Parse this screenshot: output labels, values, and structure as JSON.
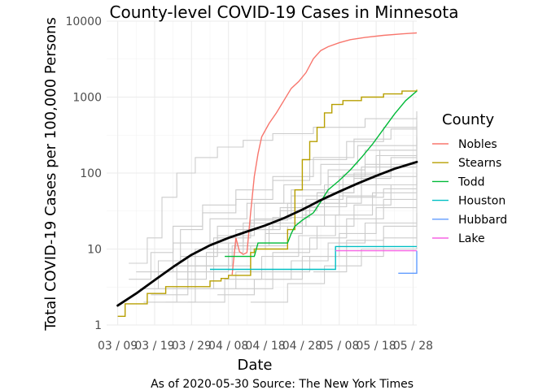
{
  "chart_data": {
    "type": "line",
    "title": "County-level COVID-19 Cases in Minnesota",
    "xlabel": "Date",
    "ylabel": "Total COVID-19 Cases per 100,000 Persons",
    "caption": "As of 2020-05-30 Source: The New York Times",
    "y_scale": "log10",
    "ylim": [
      1,
      10000
    ],
    "xlim": [
      "2020-03-06",
      "2020-05-29"
    ],
    "y_ticks": [
      {
        "value": 1,
        "label": "1"
      },
      {
        "value": 10,
        "label": "10"
      },
      {
        "value": 100,
        "label": "100"
      },
      {
        "value": 1000,
        "label": "1000"
      },
      {
        "value": 10000,
        "label": "10000"
      }
    ],
    "x_ticks": [
      {
        "date": "2020-03-09",
        "label": "03 / 09"
      },
      {
        "date": "2020-03-19",
        "label": "03 / 19"
      },
      {
        "date": "2020-03-29",
        "label": "03 / 29"
      },
      {
        "date": "2020-04-08",
        "label": "04 / 08"
      },
      {
        "date": "2020-04-18",
        "label": "04 / 18"
      },
      {
        "date": "2020-04-28",
        "label": "04 / 28"
      },
      {
        "date": "2020-05-08",
        "label": "05 / 08"
      },
      {
        "date": "2020-05-18",
        "label": "05 / 18"
      },
      {
        "date": "2020-05-28",
        "label": "05 / 28"
      }
    ],
    "grid": true,
    "legend": {
      "title": "County",
      "position": "right",
      "entries": [
        {
          "name": "Nobles",
          "color": "#F8766D"
        },
        {
          "name": "Stearns",
          "color": "#B79F00"
        },
        {
          "name": "Todd",
          "color": "#00BA38"
        },
        {
          "name": "Houston",
          "color": "#00BFC4"
        },
        {
          "name": "Hubbard",
          "color": "#619CFF"
        },
        {
          "name": "Lake",
          "color": "#F564E3"
        }
      ]
    },
    "series": [
      {
        "name": "Nobles",
        "color": "#F8766D",
        "points": [
          [
            "2020-04-09",
            4.6
          ],
          [
            "2020-04-10",
            14.0
          ],
          [
            "2020-04-11",
            9.2
          ],
          [
            "2020-04-12",
            8.5
          ],
          [
            "2020-04-13",
            9.0
          ],
          [
            "2020-04-14",
            30
          ],
          [
            "2020-04-15",
            90
          ],
          [
            "2020-04-16",
            180
          ],
          [
            "2020-04-17",
            300
          ],
          [
            "2020-04-19",
            450
          ],
          [
            "2020-04-21",
            620
          ],
          [
            "2020-04-23",
            900
          ],
          [
            "2020-04-25",
            1300
          ],
          [
            "2020-04-27",
            1600
          ],
          [
            "2020-04-29",
            2100
          ],
          [
            "2020-05-01",
            3200
          ],
          [
            "2020-05-03",
            4100
          ],
          [
            "2020-05-05",
            4600
          ],
          [
            "2020-05-08",
            5200
          ],
          [
            "2020-05-11",
            5700
          ],
          [
            "2020-05-15",
            6100
          ],
          [
            "2020-05-20",
            6500
          ],
          [
            "2020-05-25",
            6800
          ],
          [
            "2020-05-29",
            7000
          ]
        ]
      },
      {
        "name": "Stearns",
        "color": "#B79F00",
        "points": [
          [
            "2020-03-09",
            1.3
          ],
          [
            "2020-03-10",
            1.3
          ],
          [
            "2020-03-11",
            1.9
          ],
          [
            "2020-03-16",
            1.9
          ],
          [
            "2020-03-17",
            2.6
          ],
          [
            "2020-03-21",
            2.6
          ],
          [
            "2020-03-22",
            3.2
          ],
          [
            "2020-04-02",
            3.2
          ],
          [
            "2020-04-03",
            3.8
          ],
          [
            "2020-04-06",
            4.1
          ],
          [
            "2020-04-08",
            4.5
          ],
          [
            "2020-04-13",
            4.5
          ],
          [
            "2020-04-14",
            9.0
          ],
          [
            "2020-04-15",
            10.0
          ],
          [
            "2020-04-22",
            10.0
          ],
          [
            "2020-04-24",
            18
          ],
          [
            "2020-04-26",
            60
          ],
          [
            "2020-04-28",
            150
          ],
          [
            "2020-04-30",
            260
          ],
          [
            "2020-05-02",
            400
          ],
          [
            "2020-05-04",
            620
          ],
          [
            "2020-05-06",
            800
          ],
          [
            "2020-05-09",
            900
          ],
          [
            "2020-05-14",
            1000
          ],
          [
            "2020-05-20",
            1100
          ],
          [
            "2020-05-25",
            1200
          ],
          [
            "2020-05-29",
            1250
          ]
        ]
      },
      {
        "name": "Todd",
        "color": "#00BA38",
        "points": [
          [
            "2020-04-07",
            8.0
          ],
          [
            "2020-04-15",
            8.0
          ],
          [
            "2020-04-16",
            12.0
          ],
          [
            "2020-04-24",
            12.0
          ],
          [
            "2020-04-25",
            16.0
          ],
          [
            "2020-04-26",
            20
          ],
          [
            "2020-04-28",
            24
          ],
          [
            "2020-05-01",
            30
          ],
          [
            "2020-05-03",
            42
          ],
          [
            "2020-05-05",
            60
          ],
          [
            "2020-05-08",
            80
          ],
          [
            "2020-05-11",
            110
          ],
          [
            "2020-05-14",
            160
          ],
          [
            "2020-05-17",
            240
          ],
          [
            "2020-05-20",
            380
          ],
          [
            "2020-05-23",
            600
          ],
          [
            "2020-05-26",
            900
          ],
          [
            "2020-05-29",
            1200
          ]
        ]
      },
      {
        "name": "Houston",
        "color": "#00BFC4",
        "points": [
          [
            "2020-04-03",
            5.4
          ],
          [
            "2020-05-06",
            5.4
          ],
          [
            "2020-05-07",
            10.8
          ],
          [
            "2020-05-29",
            10.8
          ]
        ]
      },
      {
        "name": "Hubbard",
        "color": "#619CFF",
        "points": [
          [
            "2020-05-24",
            4.8
          ],
          [
            "2020-05-28",
            4.8
          ],
          [
            "2020-05-29",
            9.5
          ]
        ]
      },
      {
        "name": "Lake",
        "color": "#F564E3",
        "points": [
          [
            "2020-05-07",
            9.5
          ],
          [
            "2020-05-29",
            9.5
          ]
        ]
      }
    ],
    "trend": {
      "name": "state smooth",
      "color": "#000000",
      "points": [
        [
          "2020-03-09",
          1.8
        ],
        [
          "2020-03-14",
          2.6
        ],
        [
          "2020-03-19",
          3.9
        ],
        [
          "2020-03-24",
          5.8
        ],
        [
          "2020-03-29",
          8.4
        ],
        [
          "2020-04-03",
          11.2
        ],
        [
          "2020-04-08",
          14.0
        ],
        [
          "2020-04-13",
          17.0
        ],
        [
          "2020-04-18",
          20.5
        ],
        [
          "2020-04-23",
          25.5
        ],
        [
          "2020-04-28",
          33
        ],
        [
          "2020-05-03",
          44
        ],
        [
          "2020-05-08",
          57
        ],
        [
          "2020-05-13",
          73
        ],
        [
          "2020-05-18",
          92
        ],
        [
          "2020-05-23",
          114
        ],
        [
          "2020-05-29",
          140
        ]
      ]
    },
    "background_counties": [
      [
        [
          "2020-03-12",
          6.5
        ],
        [
          "2020-03-17",
          14
        ],
        [
          "2020-03-21",
          48
        ],
        [
          "2020-03-25",
          100
        ],
        [
          "2020-03-30",
          160
        ],
        [
          "2020-04-05",
          220
        ],
        [
          "2020-04-12",
          270
        ],
        [
          "2020-04-20",
          330
        ],
        [
          "2020-05-01",
          400
        ],
        [
          "2020-05-15",
          520
        ],
        [
          "2020-05-29",
          650
        ]
      ],
      [
        [
          "2020-03-15",
          3
        ],
        [
          "2020-03-20",
          7
        ],
        [
          "2020-03-26",
          18
        ],
        [
          "2020-04-01",
          30
        ],
        [
          "2020-04-10",
          45
        ],
        [
          "2020-04-20",
          80
        ],
        [
          "2020-04-30",
          150
        ],
        [
          "2020-05-10",
          260
        ],
        [
          "2020-05-20",
          400
        ],
        [
          "2020-05-29",
          560
        ]
      ],
      [
        [
          "2020-03-12",
          4
        ],
        [
          "2020-03-18",
          9
        ],
        [
          "2020-03-24",
          20
        ],
        [
          "2020-04-01",
          38
        ],
        [
          "2020-04-10",
          60
        ],
        [
          "2020-04-20",
          90
        ],
        [
          "2020-05-01",
          160
        ],
        [
          "2020-05-12",
          280
        ],
        [
          "2020-05-22",
          380
        ],
        [
          "2020-05-29",
          480
        ]
      ],
      [
        [
          "2020-03-20",
          3
        ],
        [
          "2020-03-28",
          8
        ],
        [
          "2020-04-05",
          15
        ],
        [
          "2020-04-15",
          25
        ],
        [
          "2020-04-25",
          50
        ],
        [
          "2020-05-05",
          110
        ],
        [
          "2020-05-15",
          200
        ],
        [
          "2020-05-29",
          380
        ]
      ],
      [
        [
          "2020-03-22",
          2
        ],
        [
          "2020-03-30",
          5
        ],
        [
          "2020-04-08",
          12
        ],
        [
          "2020-04-18",
          22
        ],
        [
          "2020-04-28",
          40
        ],
        [
          "2020-05-08",
          90
        ],
        [
          "2020-05-18",
          170
        ],
        [
          "2020-05-29",
          300
        ]
      ],
      [
        [
          "2020-03-16",
          2
        ],
        [
          "2020-03-25",
          6
        ],
        [
          "2020-04-04",
          14
        ],
        [
          "2020-04-14",
          24
        ],
        [
          "2020-04-24",
          40
        ],
        [
          "2020-05-04",
          70
        ],
        [
          "2020-05-14",
          120
        ],
        [
          "2020-05-29",
          240
        ]
      ],
      [
        [
          "2020-03-25",
          4
        ],
        [
          "2020-04-02",
          9
        ],
        [
          "2020-04-12",
          18
        ],
        [
          "2020-04-22",
          32
        ],
        [
          "2020-05-02",
          55
        ],
        [
          "2020-05-12",
          100
        ],
        [
          "2020-05-22",
          160
        ],
        [
          "2020-05-29",
          200
        ]
      ],
      [
        [
          "2020-03-18",
          2.5
        ],
        [
          "2020-03-28",
          6
        ],
        [
          "2020-04-08",
          10
        ],
        [
          "2020-04-18",
          16
        ],
        [
          "2020-04-28",
          28
        ],
        [
          "2020-05-08",
          50
        ],
        [
          "2020-05-18",
          90
        ],
        [
          "2020-05-29",
          170
        ]
      ],
      [
        [
          "2020-03-24",
          3
        ],
        [
          "2020-04-04",
          6
        ],
        [
          "2020-04-14",
          11
        ],
        [
          "2020-04-24",
          20
        ],
        [
          "2020-05-04",
          40
        ],
        [
          "2020-05-14",
          70
        ],
        [
          "2020-05-29",
          130
        ]
      ],
      [
        [
          "2020-03-28",
          2
        ],
        [
          "2020-04-07",
          4
        ],
        [
          "2020-04-17",
          8
        ],
        [
          "2020-04-27",
          15
        ],
        [
          "2020-05-07",
          28
        ],
        [
          "2020-05-17",
          55
        ],
        [
          "2020-05-29",
          100
        ]
      ],
      [
        [
          "2020-04-01",
          3
        ],
        [
          "2020-04-10",
          5
        ],
        [
          "2020-04-20",
          9
        ],
        [
          "2020-04-30",
          14
        ],
        [
          "2020-05-10",
          25
        ],
        [
          "2020-05-20",
          45
        ],
        [
          "2020-05-29",
          80
        ]
      ],
      [
        [
          "2020-03-20",
          5
        ],
        [
          "2020-03-30",
          10
        ],
        [
          "2020-04-10",
          18
        ],
        [
          "2020-04-20",
          26
        ],
        [
          "2020-04-30",
          36
        ],
        [
          "2020-05-10",
          48
        ],
        [
          "2020-05-20",
          62
        ],
        [
          "2020-05-29",
          75
        ]
      ],
      [
        [
          "2020-04-05",
          2.5
        ],
        [
          "2020-04-15",
          4
        ],
        [
          "2020-04-25",
          7
        ],
        [
          "2020-05-05",
          12
        ],
        [
          "2020-05-15",
          22
        ],
        [
          "2020-05-29",
          45
        ]
      ],
      [
        [
          "2020-04-10",
          3
        ],
        [
          "2020-04-20",
          5
        ],
        [
          "2020-04-30",
          8
        ],
        [
          "2020-05-10",
          13
        ],
        [
          "2020-05-20",
          20
        ],
        [
          "2020-05-29",
          30
        ]
      ],
      [
        [
          "2020-04-14",
          2
        ],
        [
          "2020-04-24",
          3.5
        ],
        [
          "2020-05-04",
          6
        ],
        [
          "2020-05-14",
          10
        ],
        [
          "2020-05-29",
          18
        ]
      ],
      [
        [
          "2020-03-26",
          8
        ],
        [
          "2020-04-05",
          20
        ],
        [
          "2020-04-15",
          40
        ],
        [
          "2020-04-25",
          60
        ],
        [
          "2020-05-05",
          90
        ],
        [
          "2020-05-15",
          130
        ],
        [
          "2020-05-29",
          180
        ]
      ],
      [
        [
          "2020-03-14",
          5
        ],
        [
          "2020-03-24",
          12
        ],
        [
          "2020-04-03",
          25
        ],
        [
          "2020-04-13",
          40
        ],
        [
          "2020-04-23",
          70
        ],
        [
          "2020-05-03",
          130
        ],
        [
          "2020-05-13",
          230
        ],
        [
          "2020-05-29",
          420
        ]
      ],
      [
        [
          "2020-04-18",
          4
        ],
        [
          "2020-04-28",
          8
        ],
        [
          "2020-05-08",
          16
        ],
        [
          "2020-05-18",
          35
        ],
        [
          "2020-05-29",
          60
        ]
      ],
      [
        [
          "2020-05-01",
          5
        ],
        [
          "2020-05-10",
          8
        ],
        [
          "2020-05-20",
          14
        ],
        [
          "2020-05-29",
          22
        ]
      ],
      [
        [
          "2020-04-22",
          10
        ],
        [
          "2020-05-02",
          20
        ],
        [
          "2020-05-12",
          38
        ],
        [
          "2020-05-22",
          70
        ],
        [
          "2020-05-29",
          110
        ]
      ],
      [
        [
          "2020-03-30",
          6
        ],
        [
          "2020-04-09",
          11
        ],
        [
          "2020-04-19",
          20
        ],
        [
          "2020-04-29",
          45
        ],
        [
          "2020-05-09",
          95
        ],
        [
          "2020-05-19",
          200
        ],
        [
          "2020-05-29",
          320
        ]
      ],
      [
        [
          "2020-04-02",
          12
        ],
        [
          "2020-04-12",
          22
        ],
        [
          "2020-04-22",
          35
        ],
        [
          "2020-05-02",
          55
        ],
        [
          "2020-05-12",
          85
        ],
        [
          "2020-05-22",
          120
        ],
        [
          "2020-05-29",
          150
        ]
      ]
    ]
  }
}
